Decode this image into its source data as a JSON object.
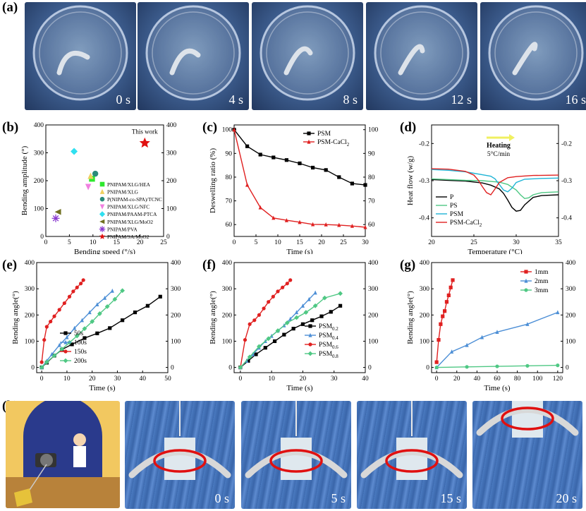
{
  "panel_labels": {
    "a": "(a)",
    "b": "(b)",
    "c": "(c)",
    "d": "(d)",
    "e": "(e)",
    "f": "(f)",
    "g": "(g)",
    "h": "(h)"
  },
  "photos_a": [
    "0 s",
    "4 s",
    "8 s",
    "12 s",
    "16 s"
  ],
  "photos_h": [
    "0 s",
    "5 s",
    "15 s",
    "20 s"
  ],
  "colors": {
    "black": "#000000",
    "red": "#e02020",
    "blue": "#4d8fd6",
    "green": "#4fc884",
    "cyan": "#1fb4d6"
  },
  "chart_data": [
    {
      "id": "b",
      "type": "scatter",
      "xlabel": "Bending speed (°/s)",
      "ylabel": "Bending amplitude (°)",
      "xlim": [
        0,
        25
      ],
      "ylim": [
        0,
        400
      ],
      "xticks": [
        0,
        5,
        10,
        15,
        20,
        25
      ],
      "yticks": [
        0,
        100,
        200,
        300,
        400
      ],
      "annotation": "This work",
      "series": [
        {
          "name": "PNIPAM/XLG/HEA",
          "x": 9.8,
          "y": 207,
          "color": "#2ee82e",
          "marker": "square"
        },
        {
          "name": "PNIPAM/XLG",
          "x": 9.5,
          "y": 217,
          "color": "#f0d060",
          "marker": "triangle"
        },
        {
          "name": "P(NIPAM-co-SPA)/TCNC",
          "x": 10.5,
          "y": 225,
          "color": "#2a8a7a",
          "marker": "circle"
        },
        {
          "name": "PNIPAM/XLG/NFC",
          "x": 9,
          "y": 178,
          "color": "#f080e0",
          "marker": "triangle-down"
        },
        {
          "name": "PNIPAM/PAAM-PTCA",
          "x": 6,
          "y": 305,
          "color": "#30e0f0",
          "marker": "diamond"
        },
        {
          "name": "PNIPAM/XLG/MoO2",
          "x": 2.6,
          "y": 88,
          "color": "#707020",
          "marker": "triangle-left"
        },
        {
          "name": "PNIPAM/PVA",
          "x": 2.1,
          "y": 65,
          "color": "#8a3ad0",
          "marker": "asterisk"
        },
        {
          "name": "PNIPAM/SA/MoO2",
          "x": 21,
          "y": 335,
          "color": "#e01010",
          "marker": "star"
        }
      ]
    },
    {
      "id": "c",
      "type": "line",
      "xlabel": "Time (s)",
      "ylabel": "Deswelling ratio (%)",
      "xlim": [
        0,
        30
      ],
      "ylim": [
        55,
        102
      ],
      "xticks": [
        0,
        5,
        10,
        15,
        20,
        25,
        30
      ],
      "yticks": [
        60,
        70,
        80,
        90,
        100
      ],
      "x": [
        0,
        3,
        6,
        9,
        12,
        15,
        18,
        21,
        24,
        27,
        30
      ],
      "series": [
        {
          "name": "PSM",
          "values": [
            100,
            93,
            89.5,
            88.3,
            87.2,
            85.8,
            84,
            83,
            80,
            77.3,
            76.7
          ],
          "color": "#000000",
          "marker": "square"
        },
        {
          "name": "PSM-CaCl2",
          "values": [
            100,
            76.7,
            67.2,
            62.8,
            61.8,
            61,
            60.1,
            60,
            59.8,
            59.4,
            58.9
          ],
          "color": "#e02020",
          "marker": "triangle"
        }
      ]
    },
    {
      "id": "d",
      "type": "line",
      "xlabel": "Temperature (°C)",
      "ylabel": "Heat flow (w/g)",
      "xlim": [
        20,
        35
      ],
      "ylim": [
        -0.45,
        -0.15
      ],
      "xticks": [
        20,
        25,
        30,
        35
      ],
      "yticks": [
        -0.2,
        -0.3,
        -0.4
      ],
      "annotation": "Heating",
      "annotation2": "5°C/min",
      "series": [
        {
          "name": "P",
          "color": "#000000",
          "x": [
            20,
            22,
            24,
            26,
            27,
            28,
            28.5,
            29,
            29.5,
            30,
            30.5,
            31,
            32,
            33,
            35
          ],
          "values": [
            -0.297,
            -0.299,
            -0.301,
            -0.306,
            -0.312,
            -0.322,
            -0.334,
            -0.352,
            -0.372,
            -0.382,
            -0.38,
            -0.365,
            -0.345,
            -0.34,
            -0.338
          ]
        },
        {
          "name": "PS",
          "color": "#4fc884",
          "x": [
            20,
            22,
            24,
            26,
            28,
            29,
            30,
            30.5,
            31,
            31.5,
            32,
            33,
            35
          ],
          "values": [
            -0.295,
            -0.297,
            -0.299,
            -0.3,
            -0.304,
            -0.31,
            -0.325,
            -0.338,
            -0.348,
            -0.346,
            -0.338,
            -0.332,
            -0.33
          ]
        },
        {
          "name": "PSM",
          "color": "#1fb4d6",
          "x": [
            20,
            22,
            24,
            25,
            26,
            27,
            27.5,
            28,
            28.5,
            29,
            29.5,
            30,
            31,
            33,
            35
          ],
          "values": [
            -0.27,
            -0.272,
            -0.276,
            -0.28,
            -0.284,
            -0.288,
            -0.295,
            -0.31,
            -0.325,
            -0.33,
            -0.32,
            -0.305,
            -0.296,
            -0.294,
            -0.293
          ]
        },
        {
          "name": "PSM-CaCl2",
          "color": "#e02020",
          "x": [
            20,
            22,
            24,
            25,
            25.5,
            26,
            26.5,
            27,
            27.5,
            28,
            29,
            30,
            32,
            35
          ],
          "values": [
            -0.268,
            -0.269,
            -0.275,
            -0.285,
            -0.298,
            -0.316,
            -0.332,
            -0.338,
            -0.322,
            -0.305,
            -0.292,
            -0.289,
            -0.286,
            -0.285
          ]
        }
      ]
    },
    {
      "id": "e",
      "type": "line",
      "xlabel": "Time (s)",
      "ylabel": "Bending angle(°)",
      "xlim": [
        -2,
        50
      ],
      "ylim": [
        -20,
        400
      ],
      "xticks": [
        0,
        10,
        20,
        30,
        40,
        50
      ],
      "yticks": [
        0,
        100,
        200,
        300,
        400
      ],
      "series": [
        {
          "name": "50s",
          "color": "#000000",
          "marker": "square",
          "x": [
            0,
            2,
            5,
            8,
            12,
            17,
            22,
            27,
            32,
            37,
            42,
            47
          ],
          "values": [
            0,
            18,
            45,
            68,
            88,
            112,
            130,
            150,
            180,
            210,
            235,
            270
          ]
        },
        {
          "name": "100s",
          "color": "#4d8fd6",
          "marker": "triangle",
          "x": [
            0,
            2,
            4,
            7,
            10,
            13,
            16,
            19,
            22,
            25,
            28
          ],
          "values": [
            0,
            25,
            50,
            85,
            115,
            150,
            180,
            210,
            240,
            265,
            292
          ]
        },
        {
          "name": "150s",
          "color": "#e02020",
          "marker": "circle",
          "x": [
            0,
            1,
            2,
            3.5,
            5,
            7,
            9,
            11,
            12.5,
            14,
            15.5,
            16.5
          ],
          "values": [
            20,
            105,
            155,
            175,
            195,
            220,
            245,
            270,
            290,
            305,
            320,
            333
          ]
        },
        {
          "name": "200s",
          "color": "#4fc884",
          "marker": "diamond",
          "x": [
            0,
            2,
            5,
            8,
            11,
            14,
            17,
            20,
            23,
            26,
            29,
            32
          ],
          "values": [
            0,
            20,
            45,
            70,
            95,
            120,
            148,
            175,
            205,
            232,
            260,
            293
          ]
        }
      ]
    },
    {
      "id": "f",
      "type": "line",
      "xlabel": "Time (s)",
      "ylabel": "Bending angle(°)",
      "xlim": [
        -2,
        40
      ],
      "ylim": [
        -20,
        400
      ],
      "xticks": [
        0,
        10,
        20,
        30,
        40
      ],
      "yticks": [
        0,
        100,
        200,
        300,
        400
      ],
      "series": [
        {
          "name": "PSM0.2",
          "sub": "0.2",
          "color": "#000000",
          "marker": "square",
          "x": [
            0,
            2.5,
            5,
            8,
            11,
            14,
            17,
            20,
            23,
            26,
            29,
            32
          ],
          "values": [
            0,
            25,
            50,
            75,
            100,
            125,
            148,
            165,
            180,
            195,
            212,
            235
          ]
        },
        {
          "name": "PSM0.4",
          "sub": "0.4",
          "color": "#4d8fd6",
          "marker": "triangle",
          "x": [
            0,
            2,
            4,
            6,
            8,
            10,
            12,
            14,
            16,
            18,
            20,
            22,
            24
          ],
          "values": [
            0,
            25,
            50,
            75,
            100,
            120,
            140,
            160,
            185,
            210,
            235,
            260,
            285
          ]
        },
        {
          "name": "PSM0.6",
          "sub": "0.6",
          "color": "#e02020",
          "marker": "circle",
          "x": [
            0,
            1.5,
            3,
            4.5,
            6,
            7.5,
            9,
            10.5,
            12,
            13.5,
            15,
            16
          ],
          "values": [
            0,
            105,
            165,
            180,
            200,
            225,
            250,
            270,
            290,
            305,
            320,
            333
          ]
        },
        {
          "name": "PSM0.8",
          "sub": "0.8",
          "color": "#4fc884",
          "marker": "diamond",
          "x": [
            0,
            3,
            6,
            9,
            12,
            15,
            18,
            21,
            24,
            27,
            32
          ],
          "values": [
            0,
            40,
            80,
            110,
            140,
            170,
            190,
            210,
            235,
            265,
            282
          ]
        }
      ]
    },
    {
      "id": "g",
      "type": "line",
      "xlabel": "Time (s)",
      "ylabel": "Bending angle(°)",
      "xlim": [
        -5,
        125
      ],
      "ylim": [
        -20,
        400
      ],
      "xticks": [
        0,
        20,
        40,
        60,
        80,
        100,
        120
      ],
      "yticks": [
        0,
        100,
        200,
        300,
        400
      ],
      "series": [
        {
          "name": "1mm",
          "color": "#e02020",
          "marker": "square",
          "x": [
            0,
            2,
            4,
            6,
            8,
            10,
            12,
            14,
            16
          ],
          "values": [
            20,
            105,
            165,
            195,
            215,
            250,
            275,
            305,
            333
          ]
        },
        {
          "name": "2mm",
          "color": "#4d8fd6",
          "marker": "triangle",
          "x": [
            0,
            15,
            30,
            45,
            60,
            90,
            120
          ],
          "values": [
            0,
            60,
            85,
            115,
            135,
            165,
            210
          ]
        },
        {
          "name": "3mm",
          "color": "#4fc884",
          "marker": "circle",
          "x": [
            0,
            30,
            60,
            90,
            120
          ],
          "values": [
            0,
            2,
            4,
            6,
            8
          ]
        }
      ]
    }
  ]
}
